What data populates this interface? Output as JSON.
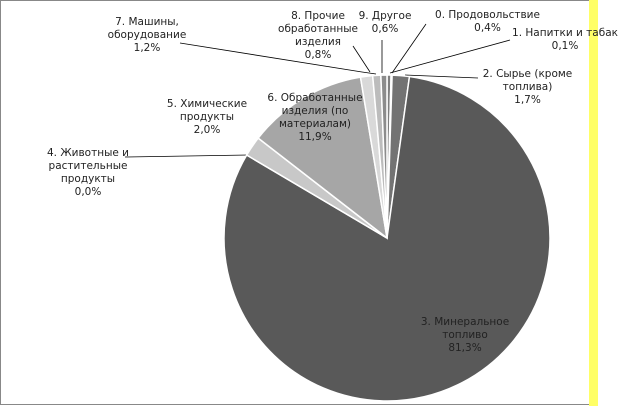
{
  "chart_data": {
    "type": "pie",
    "categories": [
      "0. Продовольствие",
      "1. Напитки и табак",
      "2. Сырье (кроме топлива)",
      "3. Минеральное топливо",
      "4. Животные и растительные продукты",
      "5. Химические продукты",
      "6. Обработанные изделия (по материалам)",
      "7. Машины, оборудование",
      "8. Прочие обработанные изделия",
      "9. Другое"
    ],
    "values": [
      0.4,
      0.1,
      1.7,
      81.3,
      0.0,
      2.0,
      11.9,
      1.2,
      0.8,
      0.6
    ],
    "value_labels": [
      "0,4%",
      "0,1%",
      "1,7%",
      "81,3%",
      "0,0%",
      "2,0%",
      "11,9%",
      "1,2%",
      "0,8%",
      "0,6%"
    ],
    "colors": [
      "#7f7f7f",
      "#404040",
      "#737373",
      "#595959",
      "#bfbfbf",
      "#c8c8c8",
      "#a6a6a6",
      "#d9d9d9",
      "#bcbcbc",
      "#8c8c8c"
    ]
  }
}
